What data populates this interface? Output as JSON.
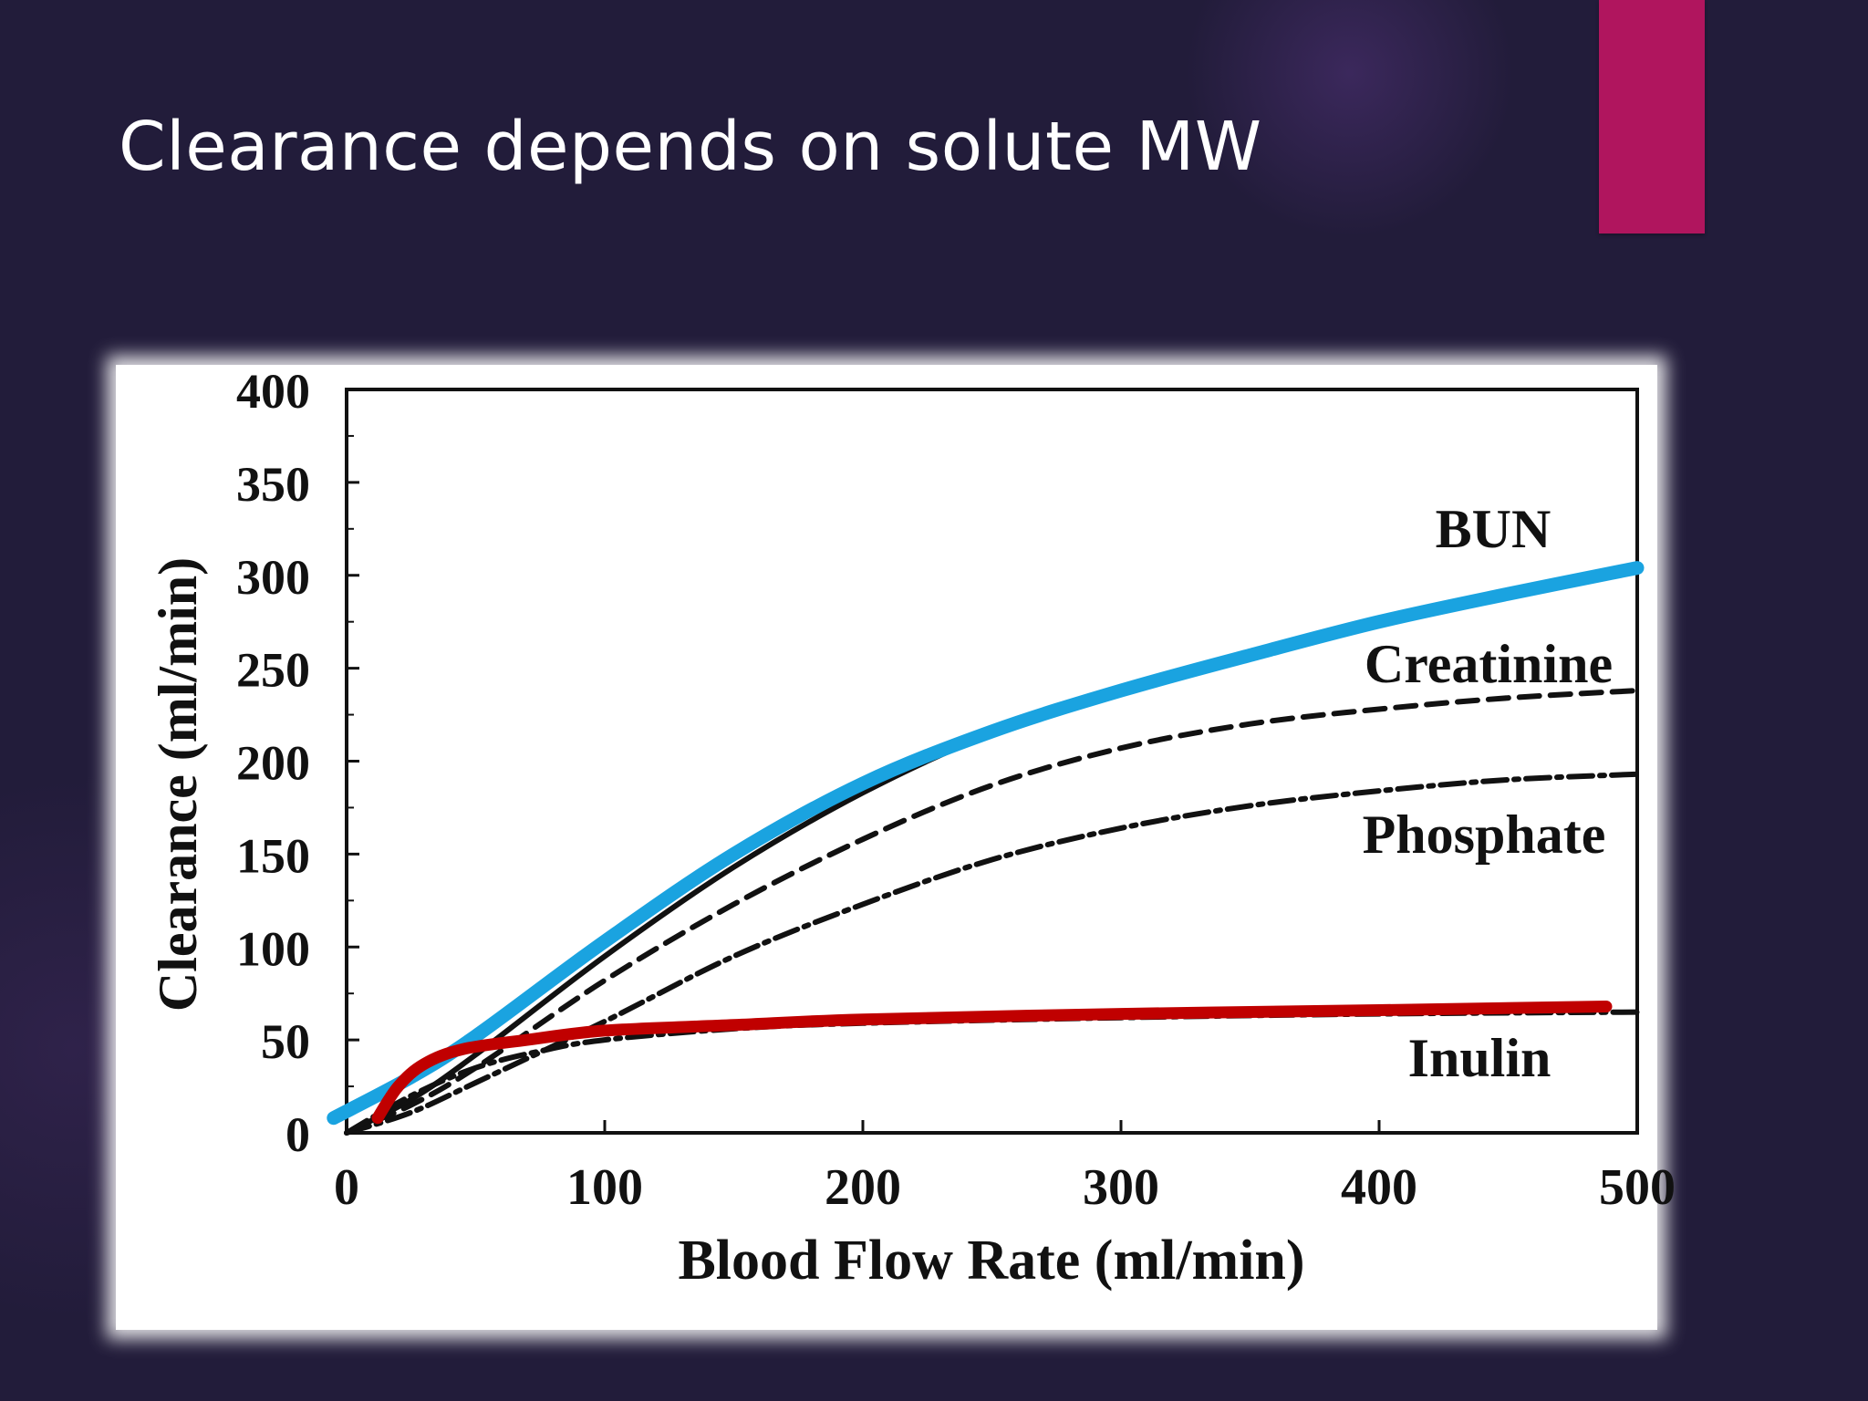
{
  "slide": {
    "title": "Clearance depends on solute MW"
  },
  "colors": {
    "background": "#221c3a",
    "accent_bar": "#b0155e",
    "highlight_blue": "#1aa3e0",
    "highlight_red": "#c00000",
    "curve": "#111111"
  },
  "chart_data": {
    "type": "line",
    "xlabel": "Blood Flow Rate (ml/min)",
    "ylabel": "Clearance (ml/min)",
    "xlim": [
      0,
      500
    ],
    "ylim": [
      0,
      400
    ],
    "xticks": [
      0,
      100,
      200,
      300,
      400,
      500
    ],
    "yticks": [
      0,
      50,
      100,
      150,
      200,
      250,
      300,
      350,
      400
    ],
    "series": [
      {
        "name": "BUN",
        "style": "solid",
        "x": [
          0,
          25,
          50,
          100,
          150,
          200,
          250,
          300,
          350,
          400,
          450,
          500
        ],
        "y": [
          0,
          18,
          42,
          95,
          143,
          183,
          215,
          238,
          258,
          275,
          290,
          305
        ]
      },
      {
        "name": "Creatinine",
        "style": "dashed",
        "x": [
          0,
          25,
          50,
          100,
          150,
          200,
          250,
          300,
          350,
          400,
          450,
          500
        ],
        "y": [
          0,
          15,
          35,
          82,
          123,
          158,
          187,
          207,
          220,
          228,
          234,
          238
        ]
      },
      {
        "name": "Phosphate",
        "style": "dashdot",
        "x": [
          0,
          25,
          50,
          100,
          150,
          200,
          250,
          300,
          350,
          400,
          450,
          500
        ],
        "y": [
          0,
          11,
          27,
          60,
          95,
          123,
          147,
          164,
          176,
          184,
          190,
          193
        ]
      },
      {
        "name": "Inulin",
        "style": "dashdot",
        "x": [
          0,
          25,
          50,
          75,
          100,
          150,
          200,
          300,
          400,
          500
        ],
        "y": [
          0,
          20,
          35,
          44,
          50,
          56,
          59,
          62,
          64,
          65
        ]
      }
    ],
    "highlights": [
      {
        "color": "blue",
        "x": [
          -5,
          25,
          50,
          100,
          150,
          200,
          250,
          300,
          350,
          400,
          450,
          500
        ],
        "y": [
          8,
          30,
          52,
          103,
          150,
          188,
          216,
          238,
          257,
          275,
          290,
          304
        ]
      },
      {
        "color": "red",
        "x": [
          12,
          20,
          30,
          45,
          70,
          100,
          150,
          200,
          300,
          400,
          488
        ],
        "y": [
          8,
          25,
          37,
          45,
          50,
          55,
          58,
          61,
          64,
          66,
          68
        ]
      }
    ]
  }
}
